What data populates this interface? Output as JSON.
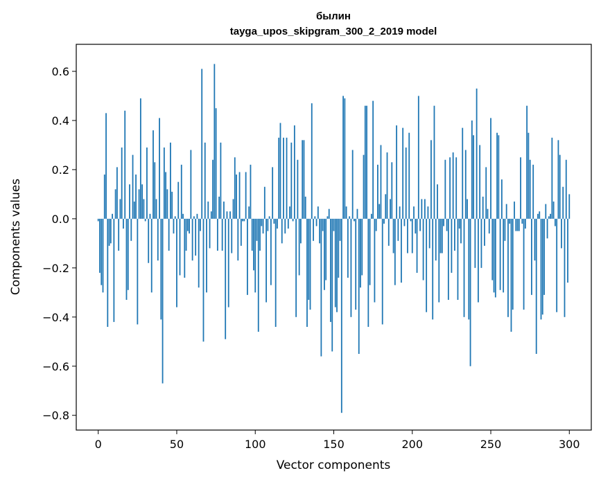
{
  "chart_data": {
    "type": "bar",
    "title_line1": "былин",
    "title_line2": "tayga_upos_skipgram_300_2_2019 model",
    "xlabel": "Vector components",
    "ylabel": "Components values",
    "xlim": [
      -14,
      314
    ],
    "ylim": [
      -0.86,
      0.71
    ],
    "xticks": [
      0,
      50,
      100,
      150,
      200,
      250,
      300
    ],
    "xtick_labels": [
      "0",
      "50",
      "100",
      "150",
      "200",
      "250",
      "300"
    ],
    "yticks": [
      -0.8,
      -0.6,
      -0.4,
      -0.2,
      0.0,
      0.2,
      0.4,
      0.6
    ],
    "ytick_labels": [
      "−0.8",
      "−0.6",
      "−0.4",
      "−0.2",
      "0.0",
      "0.2",
      "0.4",
      "0.6"
    ],
    "bar_color": "#1f77b4",
    "values": [
      -0.01,
      -0.22,
      -0.27,
      -0.3,
      0.18,
      0.43,
      -0.44,
      -0.11,
      -0.1,
      0.02,
      -0.42,
      0.12,
      0.21,
      -0.13,
      0.08,
      0.29,
      -0.04,
      0.44,
      -0.33,
      -0.29,
      0.14,
      -0.09,
      0.26,
      0.07,
      0.18,
      -0.43,
      0.12,
      0.49,
      0.14,
      0.08,
      -0.01,
      0.29,
      -0.18,
      0.02,
      -0.3,
      0.36,
      0.23,
      0.08,
      -0.17,
      0.41,
      -0.41,
      -0.67,
      0.29,
      0.19,
      0.12,
      -0.13,
      0.31,
      0.11,
      -0.06,
      0.01,
      -0.36,
      0.15,
      -0.23,
      0.22,
      0.02,
      -0.24,
      -0.13,
      -0.05,
      -0.06,
      0.28,
      -0.17,
      0.01,
      -0.15,
      0.02,
      -0.28,
      -0.05,
      0.61,
      -0.5,
      0.31,
      -0.3,
      0.07,
      -0.12,
      0.03,
      0.24,
      0.63,
      0.45,
      -0.13,
      0.09,
      0.31,
      -0.13,
      0.07,
      -0.49,
      0.03,
      -0.36,
      0.03,
      -0.14,
      0.08,
      0.25,
      0.18,
      -0.17,
      0.19,
      -0.11,
      -0.01,
      -0.01,
      0.19,
      -0.31,
      0.05,
      0.22,
      -0.13,
      -0.21,
      -0.3,
      -0.09,
      -0.46,
      -0.13,
      -0.03,
      -0.06,
      0.13,
      -0.34,
      -0.05,
      0.01,
      -0.27,
      0.21,
      -0.02,
      -0.44,
      -0.04,
      0.33,
      0.39,
      -0.1,
      0.33,
      -0.06,
      0.33,
      -0.04,
      0.05,
      0.31,
      -0.01,
      0.38,
      -0.4,
      0.24,
      -0.23,
      -0.1,
      0.32,
      0.32,
      0.09,
      -0.44,
      -0.33,
      -0.37,
      0.47,
      -0.09,
      0.01,
      -0.03,
      0.05,
      -0.1,
      -0.56,
      -0.05,
      -0.29,
      -0.25,
      0.01,
      0.04,
      -0.42,
      -0.54,
      -0.05,
      -0.36,
      -0.38,
      -0.24,
      -0.09,
      -0.79,
      0.5,
      0.49,
      0.05,
      -0.24,
      0.01,
      -0.4,
      0.28,
      -0.01,
      -0.37,
      0.04,
      -0.55,
      -0.28,
      -0.23,
      0.26,
      0.46,
      0.46,
      -0.44,
      -0.27,
      0.02,
      0.48,
      -0.34,
      -0.05,
      0.22,
      0.06,
      0.3,
      -0.43,
      -0.02,
      0.1,
      0.27,
      -0.11,
      0.08,
      0.23,
      -0.14,
      -0.27,
      0.38,
      -0.09,
      0.05,
      -0.26,
      0.37,
      -0.03,
      0.29,
      -0.14,
      0.35,
      -0.01,
      -0.14,
      0.05,
      -0.06,
      -0.22,
      0.5,
      -0.05,
      0.08,
      -0.25,
      0.08,
      -0.38,
      0.05,
      -0.12,
      0.32,
      -0.41,
      0.46,
      -0.17,
      0.14,
      -0.34,
      -0.14,
      -0.14,
      -0.03,
      0.24,
      -0.05,
      -0.33,
      0.25,
      -0.22,
      0.27,
      -0.13,
      0.25,
      -0.33,
      -0.04,
      -0.1,
      0.37,
      -0.4,
      0.28,
      0.08,
      -0.41,
      -0.6,
      0.4,
      0.34,
      -0.2,
      0.53,
      -0.34,
      0.3,
      -0.2,
      0.09,
      -0.11,
      0.21,
      0.04,
      -0.06,
      0.41,
      -0.25,
      -0.3,
      -0.32,
      0.35,
      0.34,
      -0.29,
      0.16,
      -0.3,
      -0.09,
      0.06,
      -0.4,
      -0.02,
      -0.46,
      -0.37,
      0.07,
      -0.05,
      -0.05,
      -0.05,
      0.25,
      -0.02,
      -0.37,
      -0.04,
      0.46,
      0.35,
      0.24,
      -0.31,
      0.22,
      -0.17,
      -0.55,
      0.02,
      0.03,
      -0.41,
      -0.39,
      -0.31,
      0.06,
      -0.08,
      0.01,
      0.02,
      0.33,
      0.07,
      -0.03,
      -0.38,
      0.32,
      0.26,
      -0.12,
      0.13,
      -0.4,
      0.24,
      -0.26,
      0.1
    ]
  }
}
